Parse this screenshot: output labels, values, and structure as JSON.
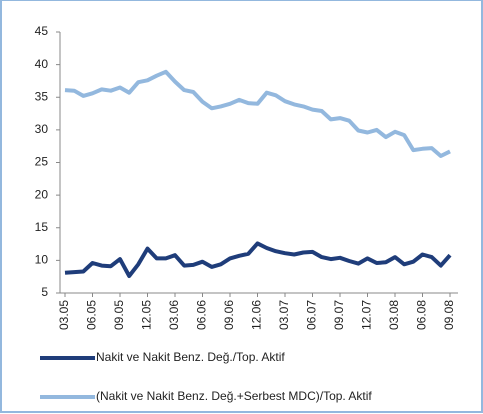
{
  "chart_data": {
    "type": "line",
    "categories": [
      "03.05",
      null,
      null,
      "06.05",
      null,
      null,
      "09.05",
      null,
      null,
      "12.05",
      null,
      null,
      "03.06",
      null,
      null,
      "06.06",
      null,
      null,
      "09.06",
      null,
      null,
      "12.06",
      null,
      null,
      "03.07",
      null,
      null,
      "06.07",
      null,
      null,
      "09.07",
      null,
      null,
      "12.07",
      null,
      null,
      "03.08",
      null,
      null,
      "06.08",
      null,
      null,
      "09.08"
    ],
    "series": [
      {
        "name": "Nakit ve Nakit Benz. Değ./Top. Aktif",
        "color": "#1f3d7a",
        "values": [
          8.1,
          8.2,
          8.3,
          9.6,
          9.2,
          9.1,
          10.2,
          7.6,
          9.4,
          11.8,
          10.3,
          10.3,
          10.8,
          9.2,
          9.3,
          9.8,
          9.0,
          9.4,
          10.3,
          10.7,
          11.0,
          12.6,
          11.9,
          11.4,
          11.1,
          10.9,
          11.2,
          11.3,
          10.5,
          10.2,
          10.4,
          9.9,
          9.5,
          10.3,
          9.6,
          9.7,
          10.5,
          9.4,
          9.8,
          10.9,
          10.5,
          9.2,
          10.8
        ]
      },
      {
        "name": "(Nakit ve Nakit Benz. Değ.+Serbest MDC)/Top. Aktif",
        "color": "#93b8de",
        "values": [
          36.1,
          36.0,
          35.2,
          35.6,
          36.2,
          36.0,
          36.5,
          35.7,
          37.3,
          37.6,
          38.3,
          38.9,
          37.4,
          36.1,
          35.8,
          34.3,
          33.3,
          33.6,
          34.0,
          34.6,
          34.1,
          34.0,
          35.7,
          35.3,
          34.4,
          33.9,
          33.6,
          33.1,
          32.9,
          31.6,
          31.8,
          31.4,
          29.9,
          29.6,
          30.0,
          28.9,
          29.7,
          29.2,
          26.9,
          27.1,
          27.2,
          26.0,
          26.7
        ]
      }
    ],
    "ylim": [
      5,
      45
    ],
    "yticks": [
      5,
      10,
      15,
      20,
      25,
      30,
      35,
      40,
      45
    ],
    "grid": false,
    "legend": "bottom"
  }
}
